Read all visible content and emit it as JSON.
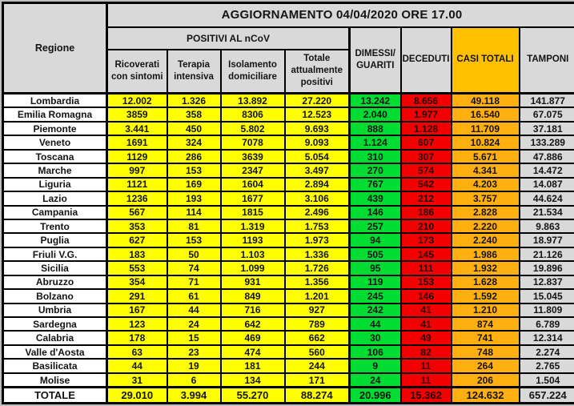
{
  "title": "AGGIORNAMENTO 04/04/2020 ORE 17.00",
  "header": {
    "regione": "Regione",
    "positivi_group": "POSITIVI AL nCoV",
    "ricoverati": "Ricoverati con sintomi",
    "terapia": "Terapia intensiva",
    "isolamento": "Isolamento domiciliare",
    "totale_positivi": "Totale attualmente positivi",
    "dimessi": "DIMESSI/ GUARITI",
    "deceduti": "DECEDUTI",
    "casi_totali": "CASI TOTALI",
    "tamponi": "TAMPONI"
  },
  "colors": {
    "positivi_cells": "#ffff00",
    "dimessi_cells": "#00dc32",
    "deceduti_cells": "#f20000",
    "casi_totali_cells": "#ffaf0f",
    "casi_totali_header": "#ffc000",
    "header_cells": "#d9d9d9",
    "tamponi_cells": "#d9d9d9",
    "region_cells": "#ffffff",
    "page_background": "#bfbfbf",
    "border": "#000000"
  },
  "chart_data": {
    "type": "table",
    "title": "AGGIORNAMENTO 04/04/2020 ORE 17.00",
    "columns": [
      "Regione",
      "Ricoverati con sintomi",
      "Terapia intensiva",
      "Isolamento domiciliare",
      "Totale attualmente positivi",
      "DIMESSI/GUARITI",
      "DECEDUTI",
      "CASI TOTALI",
      "TAMPONI"
    ],
    "rows": [
      [
        "Lombardia",
        "12.002",
        "1.326",
        "13.892",
        "27.220",
        "13.242",
        "8.656",
        "49.118",
        "141.877"
      ],
      [
        "Emilia Romagna",
        "3859",
        "358",
        "8306",
        "12.523",
        "2.040",
        "1.977",
        "16.540",
        "67.075"
      ],
      [
        "Piemonte",
        "3.441",
        "450",
        "5.802",
        "9.693",
        "888",
        "1.128",
        "11.709",
        "37.181"
      ],
      [
        "Veneto",
        "1691",
        "324",
        "7078",
        "9.093",
        "1.124",
        "607",
        "10.824",
        "133.289"
      ],
      [
        "Toscana",
        "1129",
        "286",
        "3639",
        "5.054",
        "310",
        "307",
        "5.671",
        "47.886"
      ],
      [
        "Marche",
        "997",
        "153",
        "2347",
        "3.497",
        "270",
        "574",
        "4.341",
        "14.472"
      ],
      [
        "Liguria",
        "1121",
        "169",
        "1604",
        "2.894",
        "767",
        "542",
        "4.203",
        "14.087"
      ],
      [
        "Lazio",
        "1236",
        "193",
        "1677",
        "3.106",
        "439",
        "212",
        "3.757",
        "44.624"
      ],
      [
        "Campania",
        "567",
        "114",
        "1815",
        "2.496",
        "146",
        "186",
        "2.828",
        "21.534"
      ],
      [
        "Trento",
        "353",
        "81",
        "1.319",
        "1.753",
        "257",
        "210",
        "2.220",
        "9.863"
      ],
      [
        "Puglia",
        "627",
        "153",
        "1193",
        "1.973",
        "94",
        "173",
        "2.240",
        "18.977"
      ],
      [
        "Friuli V.G.",
        "183",
        "50",
        "1.103",
        "1.336",
        "505",
        "145",
        "1.986",
        "21.126"
      ],
      [
        "Sicilia",
        "553",
        "74",
        "1.099",
        "1.726",
        "95",
        "111",
        "1.932",
        "19.896"
      ],
      [
        "Abruzzo",
        "354",
        "71",
        "931",
        "1.356",
        "119",
        "153",
        "1.628",
        "12.837"
      ],
      [
        "Bolzano",
        "291",
        "61",
        "849",
        "1.201",
        "245",
        "146",
        "1.592",
        "15.045"
      ],
      [
        "Umbria",
        "167",
        "44",
        "716",
        "927",
        "242",
        "41",
        "1.210",
        "11.809"
      ],
      [
        "Sardegna",
        "123",
        "24",
        "642",
        "789",
        "44",
        "41",
        "874",
        "6.789"
      ],
      [
        "Calabria",
        "178",
        "15",
        "469",
        "662",
        "30",
        "49",
        "741",
        "12.314"
      ],
      [
        "Valle d'Aosta",
        "63",
        "23",
        "474",
        "560",
        "106",
        "82",
        "748",
        "2.274"
      ],
      [
        "Basilicata",
        "44",
        "19",
        "181",
        "244",
        "9",
        "11",
        "264",
        "2.765"
      ],
      [
        "Molise",
        "31",
        "6",
        "134",
        "171",
        "24",
        "11",
        "206",
        "1.504"
      ]
    ],
    "total_row": [
      "TOTALE",
      "29.010",
      "3.994",
      "55.270",
      "88.274",
      "20.996",
      "15.362",
      "124.632",
      "657.224"
    ]
  }
}
